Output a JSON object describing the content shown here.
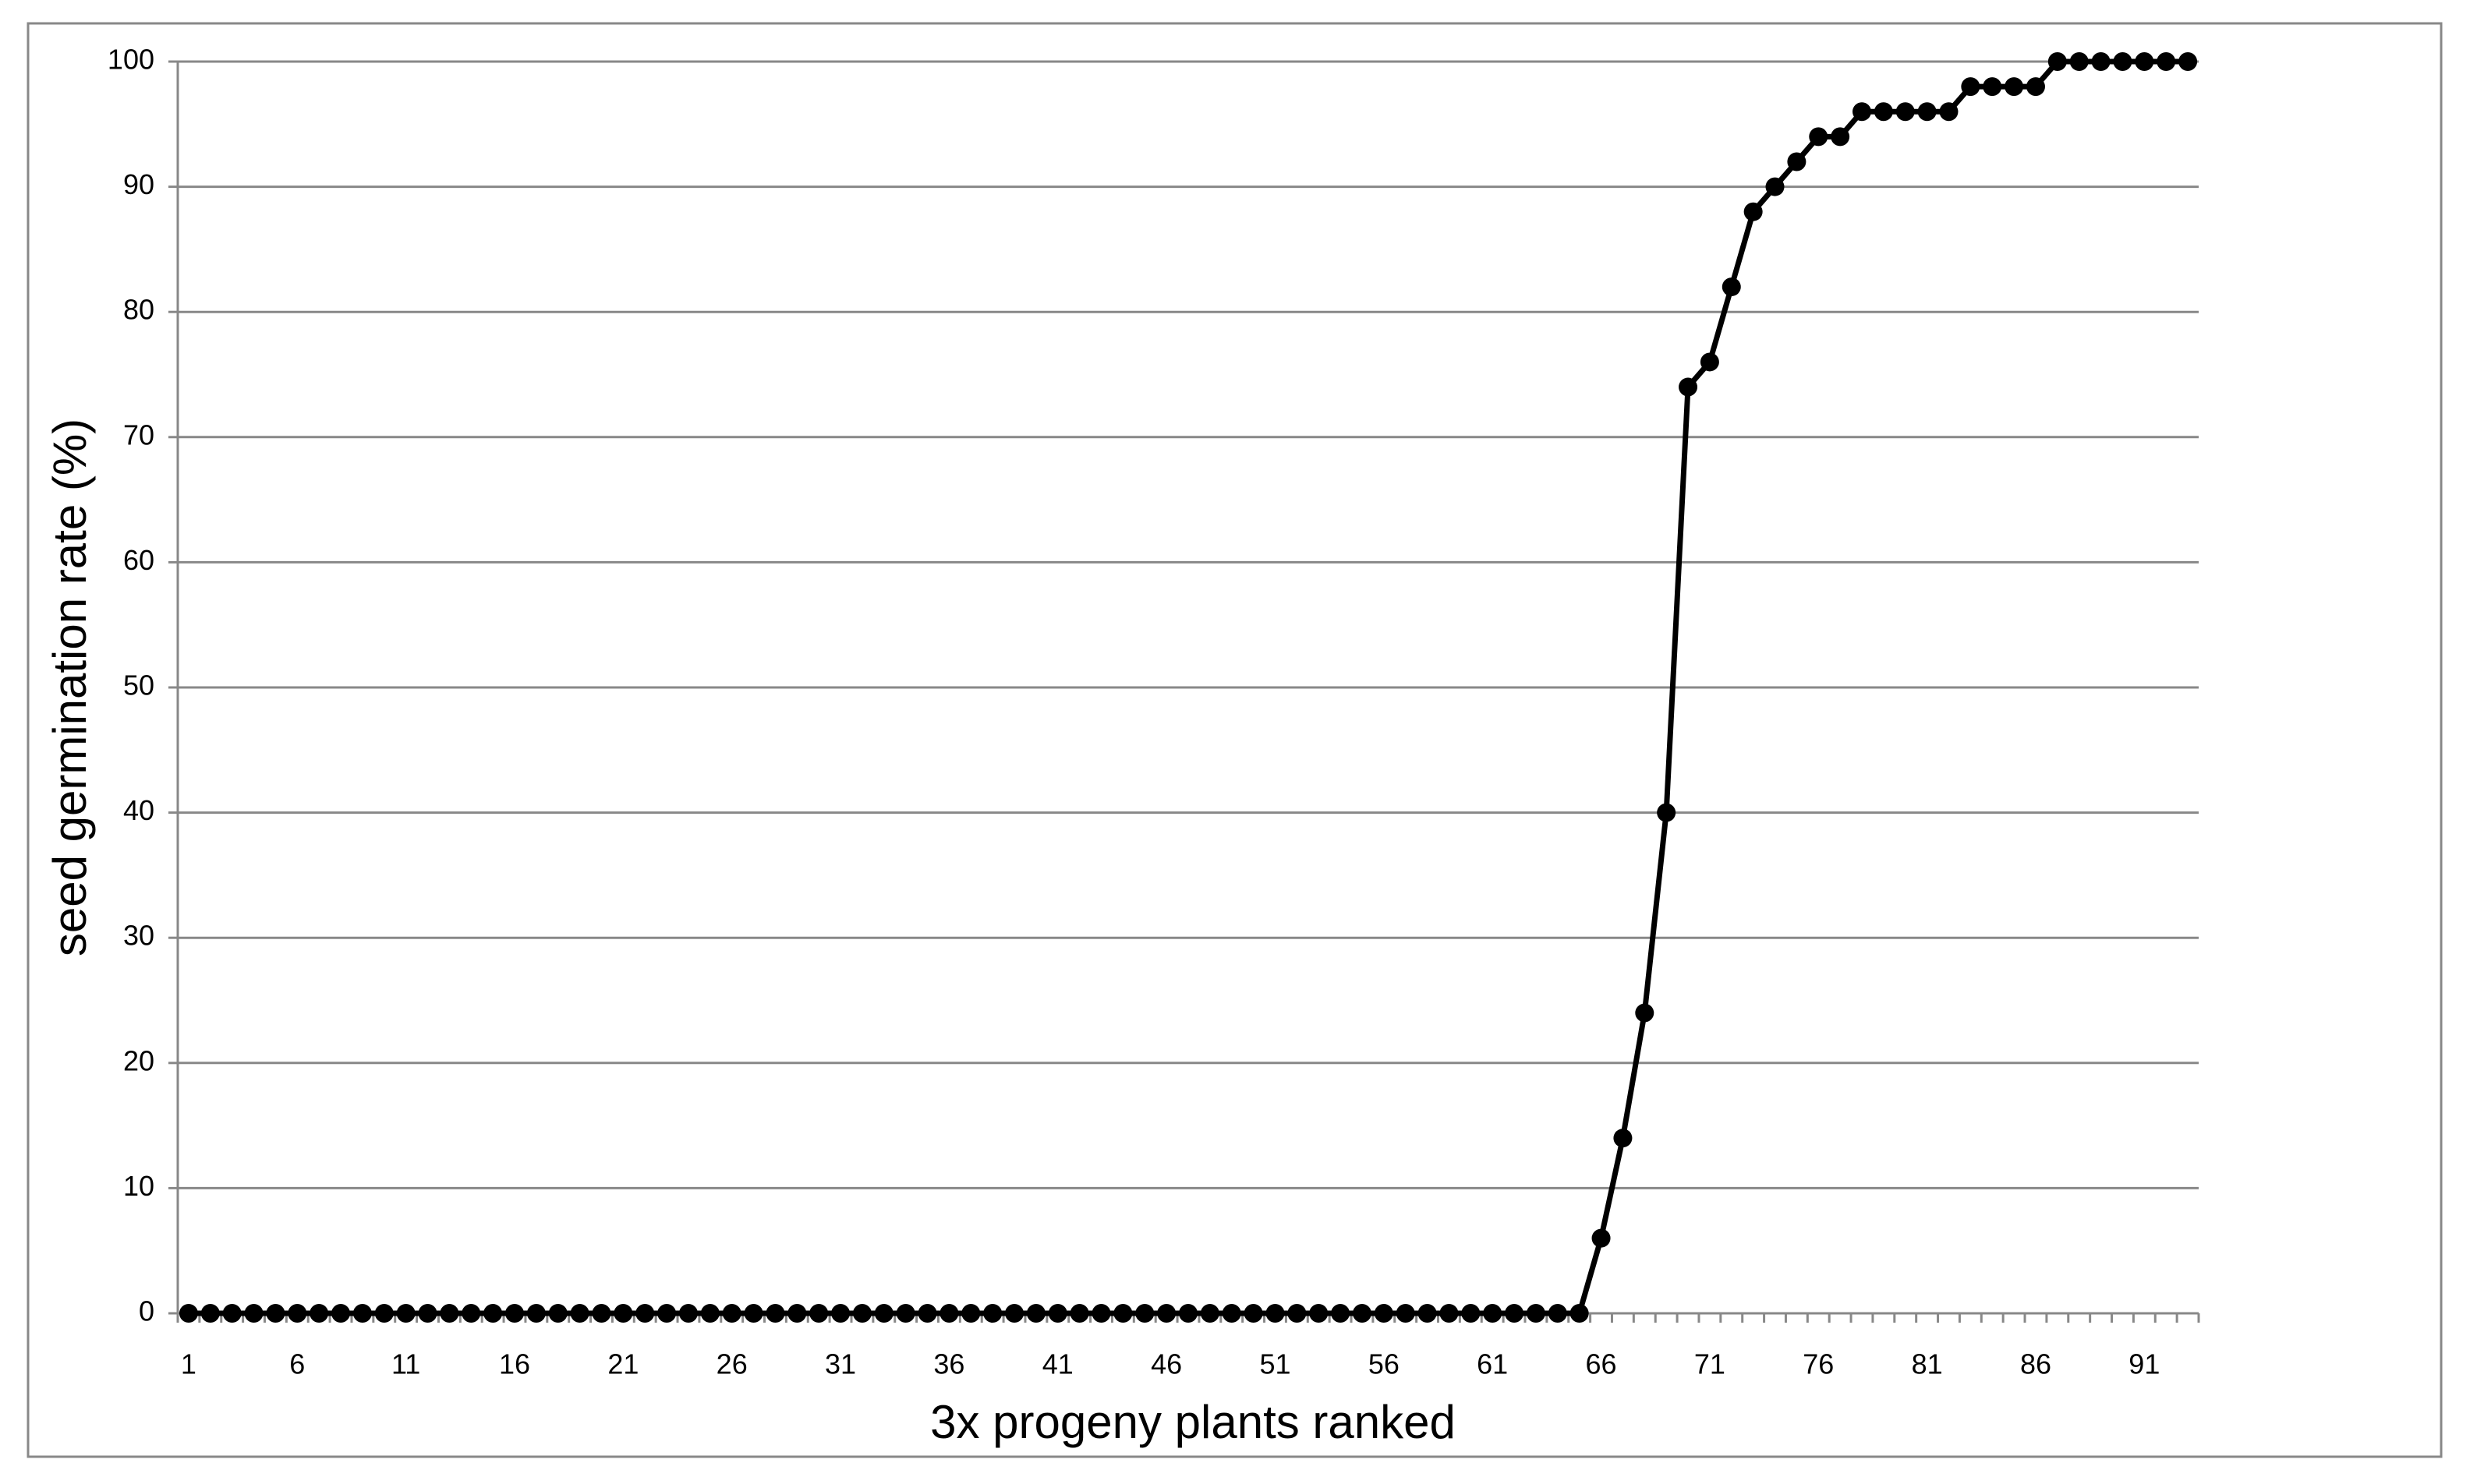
{
  "chart_data": {
    "type": "line",
    "x_label": "3x progeny plants ranked",
    "y_label": "seed germination rate (%)",
    "categories": [
      "1",
      null,
      null,
      null,
      null,
      "6",
      null,
      null,
      null,
      null,
      "11",
      null,
      null,
      null,
      null,
      "16",
      null,
      null,
      null,
      null,
      "21",
      null,
      null,
      null,
      null,
      "26",
      null,
      null,
      null,
      null,
      "31",
      null,
      null,
      null,
      null,
      "36",
      null,
      null,
      null,
      null,
      "41",
      null,
      null,
      null,
      null,
      "46",
      null,
      null,
      null,
      null,
      "51",
      null,
      null,
      null,
      null,
      "56",
      null,
      null,
      null,
      null,
      "61",
      null,
      null,
      null,
      null,
      "66",
      null,
      null,
      null,
      null,
      "71",
      null,
      null,
      null,
      null,
      "76",
      null,
      null,
      null,
      null,
      "81",
      null,
      null,
      null,
      null,
      "86",
      null,
      null,
      null,
      null,
      "91",
      null,
      null
    ],
    "values": [
      0,
      0,
      0,
      0,
      0,
      0,
      0,
      0,
      0,
      0,
      0,
      0,
      0,
      0,
      0,
      0,
      0,
      0,
      0,
      0,
      0,
      0,
      0,
      0,
      0,
      0,
      0,
      0,
      0,
      0,
      0,
      0,
      0,
      0,
      0,
      0,
      0,
      0,
      0,
      0,
      0,
      0,
      0,
      0,
      0,
      0,
      0,
      0,
      0,
      0,
      0,
      0,
      0,
      0,
      0,
      0,
      0,
      0,
      0,
      0,
      0,
      0,
      0,
      0,
      0,
      6,
      14,
      24,
      40,
      74,
      76,
      82,
      88,
      90,
      92,
      94,
      94,
      96,
      96,
      96,
      96,
      96,
      98,
      98,
      98,
      98,
      100,
      100,
      100,
      100,
      100,
      100,
      100
    ],
    "color": "#000000",
    "ylim": [
      0,
      100
    ],
    "yticks": [
      0,
      10,
      20,
      30,
      40,
      50,
      60,
      70,
      80,
      90,
      100
    ],
    "grid": true
  }
}
